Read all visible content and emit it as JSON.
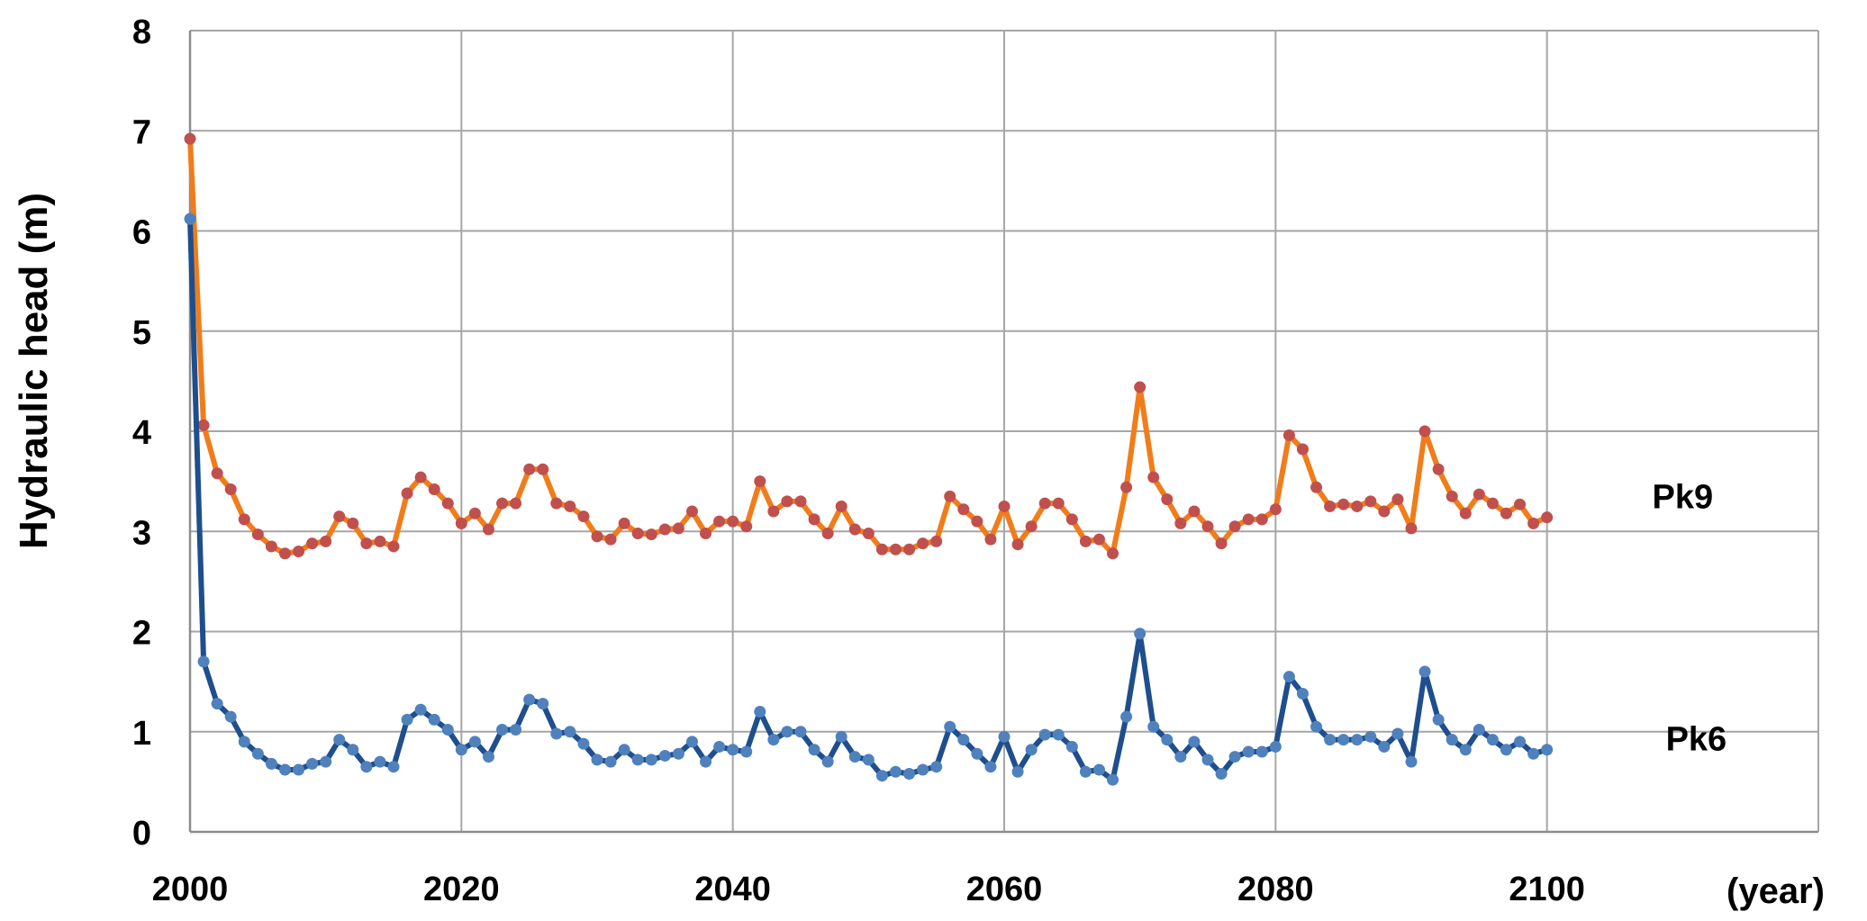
{
  "chart_data": {
    "type": "line",
    "ylabel": "Hydraulic head (m)",
    "xlabel": "(year)",
    "xlim": [
      2000,
      2120
    ],
    "ylim": [
      0,
      8
    ],
    "xticks": [
      "2000",
      "2020",
      "2040",
      "2060",
      "2080",
      "2100"
    ],
    "yticks": [
      "0",
      "1",
      "2",
      "3",
      "4",
      "5",
      "6",
      "7",
      "8"
    ],
    "grid": true,
    "x": [
      2000,
      2001,
      2002,
      2003,
      2004,
      2005,
      2006,
      2007,
      2008,
      2009,
      2010,
      2011,
      2012,
      2013,
      2014,
      2015,
      2016,
      2017,
      2018,
      2019,
      2020,
      2021,
      2022,
      2023,
      2024,
      2025,
      2026,
      2027,
      2028,
      2029,
      2030,
      2031,
      2032,
      2033,
      2034,
      2035,
      2036,
      2037,
      2038,
      2039,
      2040,
      2041,
      2042,
      2043,
      2044,
      2045,
      2046,
      2047,
      2048,
      2049,
      2050,
      2051,
      2052,
      2053,
      2054,
      2055,
      2056,
      2057,
      2058,
      2059,
      2060,
      2061,
      2062,
      2063,
      2064,
      2065,
      2066,
      2067,
      2068,
      2069,
      2070,
      2071,
      2072,
      2073,
      2074,
      2075,
      2076,
      2077,
      2078,
      2079,
      2080,
      2081,
      2082,
      2083,
      2084,
      2085,
      2086,
      2087,
      2088,
      2089,
      2090,
      2091,
      2092,
      2093,
      2094,
      2095,
      2096,
      2097,
      2098,
      2099,
      2100
    ],
    "series": [
      {
        "name": "Pk9",
        "line_color": "#F07D1A",
        "marker_color": "#C0504D",
        "values": [
          6.92,
          4.06,
          3.58,
          3.42,
          3.12,
          2.97,
          2.85,
          2.78,
          2.8,
          2.88,
          2.9,
          3.15,
          3.08,
          2.88,
          2.9,
          2.85,
          3.38,
          3.54,
          3.42,
          3.28,
          3.08,
          3.18,
          3.02,
          3.28,
          3.28,
          3.62,
          3.62,
          3.28,
          3.25,
          3.15,
          2.95,
          2.92,
          3.08,
          2.98,
          2.97,
          3.02,
          3.03,
          3.2,
          2.98,
          3.1,
          3.1,
          3.05,
          3.5,
          3.2,
          3.3,
          3.3,
          3.12,
          2.98,
          3.25,
          3.02,
          2.98,
          2.82,
          2.82,
          2.82,
          2.88,
          2.9,
          3.35,
          3.22,
          3.1,
          2.92,
          3.25,
          2.87,
          3.05,
          3.28,
          3.28,
          3.12,
          2.9,
          2.92,
          2.78,
          3.44,
          4.44,
          3.54,
          3.32,
          3.08,
          3.2,
          3.05,
          2.88,
          3.05,
          3.12,
          3.12,
          3.22,
          3.96,
          3.82,
          3.44,
          3.25,
          3.27,
          3.25,
          3.3,
          3.2,
          3.32,
          3.03,
          4.0,
          3.62,
          3.35,
          3.18,
          3.37,
          3.28,
          3.18,
          3.27,
          3.08,
          3.14
        ]
      },
      {
        "name": "Pk6",
        "line_color": "#1F4E8C",
        "marker_color": "#4F81BD",
        "values": [
          6.12,
          1.7,
          1.28,
          1.15,
          0.9,
          0.78,
          0.68,
          0.62,
          0.62,
          0.68,
          0.7,
          0.92,
          0.82,
          0.65,
          0.7,
          0.65,
          1.12,
          1.22,
          1.12,
          1.02,
          0.82,
          0.9,
          0.75,
          1.02,
          1.02,
          1.32,
          1.28,
          0.98,
          1.0,
          0.88,
          0.72,
          0.7,
          0.82,
          0.72,
          0.72,
          0.76,
          0.78,
          0.9,
          0.7,
          0.85,
          0.82,
          0.8,
          1.2,
          0.92,
          1.0,
          1.0,
          0.82,
          0.7,
          0.95,
          0.75,
          0.72,
          0.56,
          0.6,
          0.58,
          0.62,
          0.65,
          1.05,
          0.92,
          0.78,
          0.65,
          0.95,
          0.6,
          0.82,
          0.97,
          0.97,
          0.85,
          0.6,
          0.62,
          0.52,
          1.15,
          1.98,
          1.05,
          0.92,
          0.75,
          0.9,
          0.72,
          0.58,
          0.75,
          0.8,
          0.8,
          0.85,
          1.55,
          1.38,
          1.05,
          0.92,
          0.92,
          0.92,
          0.95,
          0.85,
          0.98,
          0.7,
          1.6,
          1.12,
          0.92,
          0.82,
          1.02,
          0.92,
          0.82,
          0.9,
          0.78,
          0.82
        ]
      }
    ],
    "labels": [
      {
        "text": "Pk9",
        "x": 2110,
        "y": 3.35
      },
      {
        "text": "Pk6",
        "x": 2111,
        "y": 0.93
      }
    ]
  }
}
